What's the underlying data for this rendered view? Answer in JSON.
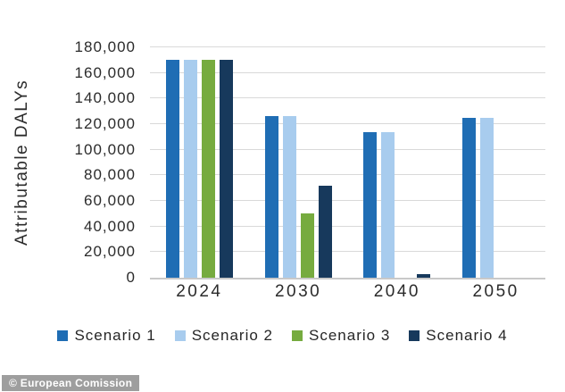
{
  "figure": {
    "credit": "© European Comission"
  },
  "chart_data": {
    "type": "bar",
    "title": "",
    "xlabel": "",
    "ylabel": "Attributable DALYs",
    "categories": [
      "2024",
      "2030",
      "2040",
      "2050"
    ],
    "series": [
      {
        "name": "Scenario 1",
        "color": "#1f6db4",
        "values": [
          170000,
          126000,
          114000,
          125000
        ]
      },
      {
        "name": "Scenario 2",
        "color": "#a8ccee",
        "values": [
          170000,
          126000,
          114000,
          125000
        ]
      },
      {
        "name": "Scenario 3",
        "color": "#76ab3f",
        "values": [
          170000,
          50000,
          0,
          0
        ]
      },
      {
        "name": "Scenario 4",
        "color": "#17395c",
        "values": [
          170000,
          72000,
          2500,
          0
        ]
      }
    ],
    "ylim": [
      0,
      180000
    ],
    "ytick_step": 20000,
    "ytick_labels": [
      "0",
      "20,000",
      "40,000",
      "60,000",
      "80,000",
      "100,000",
      "120,000",
      "140,000",
      "160,000",
      "180,000"
    ],
    "grid": true,
    "legend_position": "bottom",
    "colors": {
      "gridline": "#d9d9d9",
      "axis_line": "#c9c9c9",
      "text": "#2b2b2b"
    }
  }
}
